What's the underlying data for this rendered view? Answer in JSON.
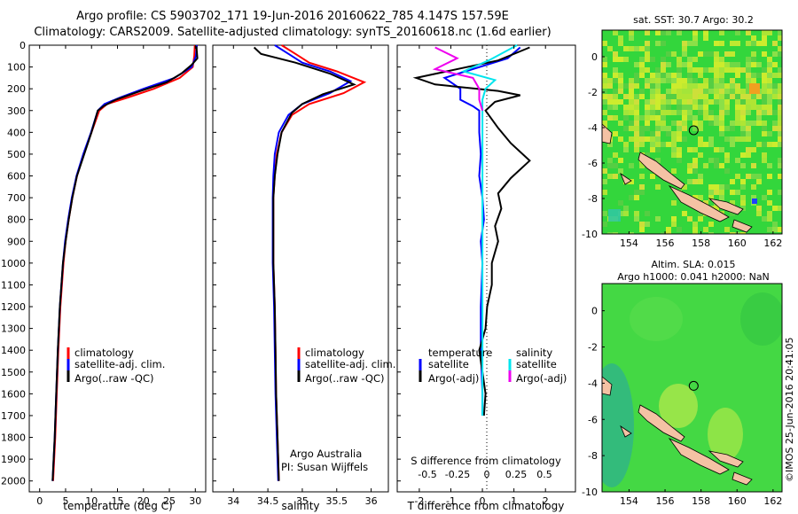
{
  "header": {
    "title_line1": "Argo profile: CS 5903702_171 19-Jun-2016 20160622_785 4.147S 157.59E",
    "title_line2": "Climatology: CARS2009. Satellite-adjusted climatology: synTS_20160618.nc (1.6d earlier)"
  },
  "map_top_title": "sat. SST: 30.7 Argo: 30.2",
  "map_bottom_title_1": "Altim. SLA: 0.015",
  "map_bottom_title_2": "Argo h1000: 0.041 h2000: NaN",
  "attribution": "Argo Australia",
  "pi": "PI: Susan Wijffels",
  "stamp": "©IMOS 25-Jun-2016 20:41:05",
  "colors": {
    "climatology": "#ff0000",
    "satellite": "#0000ff",
    "argo": "#000000",
    "sal_sat": "#00e5ee",
    "sal_argo": "#ee00ee"
  },
  "chart_data": [
    {
      "type": "line",
      "xlabel": "temperature (deg C)",
      "ylabel": "",
      "xlim": [
        -2,
        32
      ],
      "ylim": [
        0,
        2050
      ],
      "x_ticks": [
        0,
        5,
        10,
        15,
        20,
        25,
        30
      ],
      "y_ticks": [
        0,
        100,
        200,
        300,
        400,
        500,
        600,
        700,
        800,
        900,
        1000,
        1100,
        1200,
        1300,
        1400,
        1500,
        1600,
        1700,
        1800,
        1900,
        2000
      ],
      "legend": [
        "climatology",
        "satellite-adj. clim.",
        "Argo(..raw -QC)"
      ],
      "series": [
        {
          "name": "climatology",
          "color": "#ff0000",
          "points": [
            [
              29.9,
              0
            ],
            [
              29.8,
              50
            ],
            [
              29.5,
              100
            ],
            [
              27,
              150
            ],
            [
              22,
              200
            ],
            [
              17,
              240
            ],
            [
              13,
              270
            ],
            [
              11.5,
              300
            ],
            [
              10,
              400
            ],
            [
              8.5,
              500
            ],
            [
              7.2,
              600
            ],
            [
              6.3,
              700
            ],
            [
              5.6,
              800
            ],
            [
              5,
              900
            ],
            [
              4.6,
              1000
            ],
            [
              4,
              1200
            ],
            [
              3.6,
              1400
            ],
            [
              3.3,
              1600
            ],
            [
              3,
              1800
            ],
            [
              2.6,
              2000
            ]
          ]
        },
        {
          "name": "satellite-adj. clim.",
          "color": "#0000ff",
          "points": [
            [
              30.3,
              0
            ],
            [
              30.1,
              50
            ],
            [
              29.3,
              100
            ],
            [
              26,
              150
            ],
            [
              20,
              200
            ],
            [
              15.5,
              240
            ],
            [
              12.5,
              270
            ],
            [
              11.2,
              300
            ],
            [
              9.9,
              400
            ],
            [
              8.4,
              500
            ],
            [
              7.1,
              600
            ],
            [
              6.2,
              700
            ],
            [
              5.5,
              800
            ],
            [
              4.9,
              900
            ],
            [
              4.5,
              1000
            ],
            [
              3.9,
              1200
            ],
            [
              3.5,
              1400
            ],
            [
              3.2,
              1600
            ],
            [
              2.9,
              1800
            ],
            [
              2.5,
              2000
            ]
          ]
        },
        {
          "name": "Argo(..raw -QC)",
          "color": "#000000",
          "points": [
            [
              30.2,
              5
            ],
            [
              30.3,
              30
            ],
            [
              30.4,
              60
            ],
            [
              29.3,
              90
            ],
            [
              27.3,
              130
            ],
            [
              24.5,
              170
            ],
            [
              19.5,
              210
            ],
            [
              14.7,
              250
            ],
            [
              12.3,
              280
            ],
            [
              11.2,
              300
            ],
            [
              10,
              400
            ],
            [
              8.6,
              500
            ],
            [
              7.2,
              600
            ],
            [
              6.3,
              700
            ],
            [
              5.6,
              800
            ],
            [
              5,
              900
            ],
            [
              4.5,
              1000
            ],
            [
              3.9,
              1200
            ],
            [
              3.5,
              1400
            ],
            [
              3.2,
              1600
            ],
            [
              2.9,
              1800
            ],
            [
              2.5,
              2000
            ]
          ]
        }
      ]
    },
    {
      "type": "line",
      "xlabel": "salinity",
      "xlim": [
        33.7,
        36.25
      ],
      "ylim": [
        0,
        2050
      ],
      "x_ticks": [
        34,
        34.5,
        35,
        35.5,
        36
      ],
      "legend": [
        "climatology",
        "satellite-adj. clim.",
        "Argo(..raw -QC)"
      ],
      "series": [
        {
          "name": "climatology",
          "color": "#ff0000",
          "points": [
            [
              34.7,
              0
            ],
            [
              34.9,
              40
            ],
            [
              35.1,
              80
            ],
            [
              35.5,
              120
            ],
            [
              35.9,
              170
            ],
            [
              35.6,
              220
            ],
            [
              35.1,
              270
            ],
            [
              34.85,
              320
            ],
            [
              34.7,
              400
            ],
            [
              34.63,
              500
            ],
            [
              34.6,
              600
            ],
            [
              34.58,
              700
            ],
            [
              34.58,
              800
            ],
            [
              34.58,
              1000
            ],
            [
              34.6,
              1200
            ],
            [
              34.61,
              1400
            ],
            [
              34.62,
              1600
            ],
            [
              34.64,
              1800
            ],
            [
              34.66,
              2000
            ]
          ]
        },
        {
          "name": "satellite-adj. clim.",
          "color": "#0000ff",
          "points": [
            [
              34.6,
              0
            ],
            [
              34.8,
              40
            ],
            [
              35,
              80
            ],
            [
              35.4,
              120
            ],
            [
              35.7,
              165
            ],
            [
              35.4,
              220
            ],
            [
              35,
              270
            ],
            [
              34.8,
              320
            ],
            [
              34.66,
              400
            ],
            [
              34.6,
              500
            ],
            [
              34.58,
              600
            ],
            [
              34.57,
              700
            ],
            [
              34.57,
              800
            ],
            [
              34.57,
              1000
            ],
            [
              34.59,
              1200
            ],
            [
              34.6,
              1400
            ],
            [
              34.61,
              1600
            ],
            [
              34.63,
              1800
            ],
            [
              34.65,
              2000
            ]
          ]
        },
        {
          "name": "Argo(..raw -QC)",
          "color": "#000000",
          "points": [
            [
              34.3,
              10
            ],
            [
              34.4,
              40
            ],
            [
              34.9,
              80
            ],
            [
              35.4,
              130
            ],
            [
              35.75,
              180
            ],
            [
              35.3,
              225
            ],
            [
              35,
              270
            ],
            [
              34.85,
              310
            ],
            [
              34.7,
              400
            ],
            [
              34.64,
              500
            ],
            [
              34.6,
              600
            ],
            [
              34.58,
              700
            ],
            [
              34.58,
              800
            ],
            [
              34.58,
              1000
            ],
            [
              34.6,
              1200
            ],
            [
              34.61,
              1400
            ],
            [
              34.62,
              1600
            ],
            [
              34.64,
              1800
            ],
            [
              34.66,
              2000
            ]
          ]
        }
      ]
    },
    {
      "type": "line",
      "xlabel": "T difference from climatology",
      "top_axis_label": "S difference from climatology",
      "xlim": [
        -2.7,
        2.95
      ],
      "ylim": [
        0,
        2050
      ],
      "x_ticks": [
        -2,
        -1,
        0,
        1,
        2
      ],
      "s_ticks": [
        "-0.5",
        "-0.25",
        "0",
        "0.25",
        "0.5"
      ],
      "legend_left": [
        "temperature",
        "satellite",
        "Argo(-adj)"
      ],
      "legend_right": [
        "salinity",
        "satellite",
        "Argo(-adj)"
      ],
      "series": [
        {
          "name": "temperature satellite",
          "color": "#0000ff",
          "points": [
            [
              1.2,
              10
            ],
            [
              0.8,
              60
            ],
            [
              -1.2,
              150
            ],
            [
              -0.7,
              200
            ],
            [
              -0.7,
              250
            ],
            [
              -0.3,
              280
            ],
            [
              -0.1,
              300
            ],
            [
              -0.1,
              400
            ],
            [
              -0.05,
              500
            ],
            [
              -0.1,
              600
            ],
            [
              0,
              700
            ],
            [
              0.05,
              800
            ],
            [
              -0.05,
              900
            ],
            [
              0,
              1000
            ],
            [
              -0.05,
              1200
            ],
            [
              -0.05,
              1400
            ],
            [
              0,
              1600
            ],
            [
              0,
              1700
            ]
          ]
        },
        {
          "name": "temperature Argo(-adj)",
          "color": "#000000",
          "points": [
            [
              1.5,
              10
            ],
            [
              0.5,
              70
            ],
            [
              -2.1,
              150
            ],
            [
              -1.5,
              180
            ],
            [
              0.5,
              210
            ],
            [
              1.2,
              230
            ],
            [
              0.4,
              260
            ],
            [
              0.1,
              300
            ],
            [
              0.5,
              380
            ],
            [
              0.9,
              450
            ],
            [
              1.5,
              530
            ],
            [
              0.9,
              610
            ],
            [
              0.5,
              680
            ],
            [
              0.6,
              750
            ],
            [
              0.4,
              830
            ],
            [
              0.5,
              900
            ],
            [
              0.3,
              1000
            ],
            [
              0.3,
              1100
            ],
            [
              0.15,
              1200
            ],
            [
              0.1,
              1300
            ],
            [
              -0.1,
              1400
            ],
            [
              0,
              1500
            ],
            [
              0.1,
              1600
            ],
            [
              0.05,
              1700
            ]
          ]
        },
        {
          "name": "salinity satellite",
          "color": "#00e5ee",
          "points": [
            [
              1.1,
              0
            ],
            [
              0.2,
              70
            ],
            [
              -0.6,
              120
            ],
            [
              0.4,
              160
            ],
            [
              0.1,
              200
            ],
            [
              0,
              250
            ],
            [
              0,
              300
            ],
            [
              0,
              400
            ],
            [
              0,
              500
            ],
            [
              0,
              600
            ],
            [
              0,
              700
            ],
            [
              0,
              800
            ],
            [
              0,
              900
            ],
            [
              0,
              1000
            ],
            [
              0,
              1200
            ],
            [
              0,
              1400
            ],
            [
              0,
              1600
            ],
            [
              0,
              1700
            ]
          ]
        },
        {
          "name": "salinity Argo(-adj)",
          "color": "#ee00ee",
          "points": [
            [
              -1.5,
              10
            ],
            [
              -0.8,
              60
            ],
            [
              -1.5,
              110
            ],
            [
              -0.3,
              150
            ],
            [
              -0.1,
              200
            ],
            [
              -0.1,
              250
            ],
            [
              0,
              300
            ]
          ]
        }
      ]
    },
    {
      "type": "heatmap",
      "title": "sat. SST: 30.7 Argo: 30.2",
      "xlim": [
        152.5,
        162.5
      ],
      "ylim": [
        -10,
        1.5
      ],
      "x_ticks": [
        154,
        156,
        158,
        160,
        162
      ],
      "y_ticks": [
        0,
        -2,
        -4,
        -6,
        -8,
        -10
      ],
      "argo_location": [
        157.59,
        -4.147
      ]
    },
    {
      "type": "heatmap",
      "title": "Altim. SLA: 0.015",
      "subtitle": "Argo h1000: 0.041 h2000: NaN",
      "xlim": [
        152.5,
        162.5
      ],
      "ylim": [
        -10,
        1.5
      ],
      "x_ticks": [
        154,
        156,
        158,
        160,
        162
      ],
      "y_ticks": [
        0,
        -2,
        -4,
        -6,
        -8,
        -10
      ],
      "argo_location": [
        157.59,
        -4.147
      ]
    }
  ]
}
